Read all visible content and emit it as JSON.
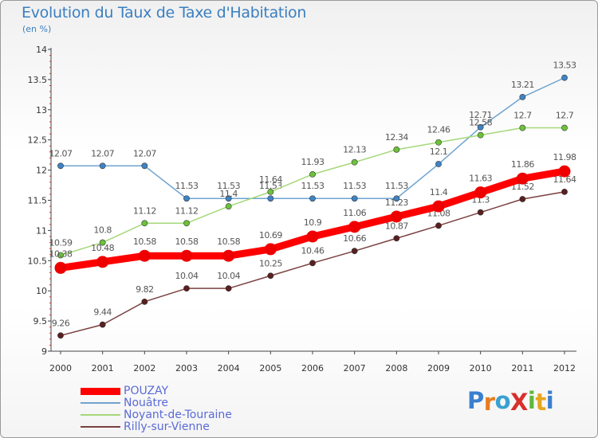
{
  "header": {
    "title": "Evolution du Taux de Taxe d'Habitation",
    "subtitle": "(en %)"
  },
  "logo": {
    "text": "ProXiti",
    "letters": [
      {
        "ch": "P",
        "color": "#3a7fd0"
      },
      {
        "ch": "r",
        "color": "#e87b1e"
      },
      {
        "ch": "o",
        "color": "#3aa1d0"
      },
      {
        "ch": "X",
        "color": "#d8302a"
      },
      {
        "ch": "i",
        "color": "#5fb83a"
      },
      {
        "ch": "t",
        "color": "#e8a51e"
      },
      {
        "ch": "i",
        "color": "#3a7fd0"
      }
    ]
  },
  "chart_data": {
    "type": "line",
    "x": [
      "2000",
      "2001",
      "2002",
      "2003",
      "2004",
      "2005",
      "2006",
      "2007",
      "2008",
      "2009",
      "2010",
      "2011",
      "2012"
    ],
    "ylim": [
      9,
      14
    ],
    "yticks": [
      "9",
      "9.5",
      "10",
      "10.5",
      "11",
      "11.5",
      "12",
      "12.5",
      "13",
      "13.5",
      "14"
    ],
    "grid": false,
    "legend_position": "bottom-left",
    "series": [
      {
        "name": "Nouâtre",
        "color": "#6fa3cf",
        "marker": "#3f83c4",
        "values": [
          12.07,
          12.07,
          12.07,
          11.53,
          11.53,
          11.53,
          11.53,
          11.53,
          11.53,
          12.1,
          12.71,
          13.21,
          13.53
        ],
        "labels": [
          "12.07",
          "12.07",
          "12.07",
          "11.53",
          "11.53",
          "11.53",
          "11.53",
          "11.53",
          "11.53",
          "12.1",
          "12.71",
          "13.21",
          "13.53"
        ]
      },
      {
        "name": "Noyant-de-Touraine",
        "color": "#a6d87a",
        "marker": "#6cc23a",
        "values": [
          10.59,
          10.8,
          11.12,
          11.12,
          11.4,
          11.64,
          11.93,
          12.13,
          12.34,
          12.46,
          12.58,
          12.7,
          12.7
        ],
        "labels": [
          "10.59",
          "10.8",
          "11.12",
          "11.12",
          "11.4",
          "11.64",
          "11.93",
          "12.13",
          "12.34",
          "12.46",
          "12.58",
          "12.7",
          "12.7"
        ]
      },
      {
        "name": "Rilly-sur-Vienne",
        "color": "#7a4040",
        "marker": "#5a1f1f",
        "values": [
          9.26,
          9.44,
          9.82,
          10.04,
          10.04,
          10.25,
          10.46,
          10.66,
          10.87,
          11.08,
          11.3,
          11.52,
          11.64
        ],
        "labels": [
          "9.26",
          "9.44",
          "9.82",
          "10.04",
          "10.04",
          "10.25",
          "10.46",
          "10.66",
          "10.87",
          "11.08",
          "11.3",
          "11.52",
          "11.64"
        ]
      },
      {
        "name": "POUZAY",
        "color": "#ff0000",
        "marker": "#ee0000",
        "values": [
          10.38,
          10.48,
          10.58,
          10.58,
          10.58,
          10.69,
          10.9,
          11.06,
          11.23,
          11.4,
          11.63,
          11.86,
          11.98
        ],
        "labels": [
          "10.38",
          "10.48",
          "10.58",
          "10.58",
          "10.58",
          "10.69",
          "10.9",
          "11.06",
          "11.23",
          "11.4",
          "11.63",
          "11.86",
          "11.98"
        ]
      }
    ],
    "legend": [
      "POUZAY",
      "Nouâtre",
      "Noyant-de-Touraine",
      "Rilly-sur-Vienne"
    ]
  }
}
